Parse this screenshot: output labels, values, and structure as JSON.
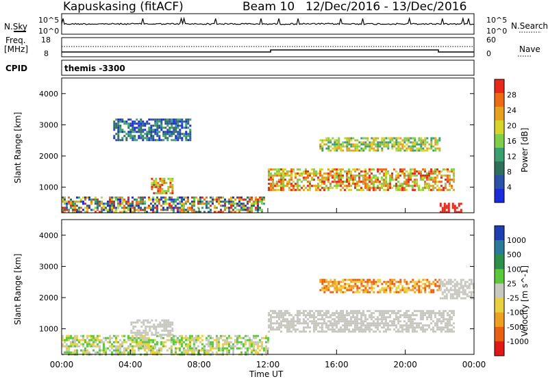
{
  "header": {
    "station": "Kapuskasing (fitACF)",
    "beam": "Beam 10",
    "dates": "12/Dec/2016 - 13/Dec/2016"
  },
  "side_labels": {
    "nsky": "N.Sky",
    "nsearch": "N.Search",
    "freq_line1": "Freq.",
    "freq_line2": "[MHz]",
    "nave": "Nave",
    "cpid": "CPID"
  },
  "noise_panel": {
    "ytick_low": "10^0",
    "ytick_high": "10^5",
    "right_tick_low": "10^0",
    "right_tick_high": "10^5"
  },
  "freq_panel": {
    "left_ticks": [
      "8",
      "18"
    ],
    "right_ticks": [
      "0",
      "60"
    ]
  },
  "cpid_panel": {
    "text": "themis -3300"
  },
  "time_axis": {
    "label": "Time UT",
    "ticks": [
      "00:00",
      "04:00",
      "08:00",
      "12:00",
      "16:00",
      "20:00",
      "00:00"
    ]
  },
  "power_panel": {
    "ylabel": "Slant Range [km]",
    "yticks": [
      "1000",
      "2000",
      "3000",
      "4000"
    ],
    "colorbar_label": "Power [dB]",
    "colorbar_ticks": [
      "4",
      "8",
      "12",
      "16",
      "20",
      "24",
      "28"
    ],
    "colors": [
      "#1a2bd9",
      "#2a52a8",
      "#2e6f5c",
      "#3aa070",
      "#7fcf4a",
      "#d6d32b",
      "#e8a020",
      "#ee6a14",
      "#e82818"
    ]
  },
  "velocity_panel": {
    "ylabel": "Slant Range [km]",
    "yticks": [
      "1000",
      "2000",
      "3000",
      "4000"
    ],
    "colorbar_label": "Velocity [m s^-1]",
    "colorbar_ticks": [
      "1000",
      "500",
      "100",
      "25",
      "-25",
      "-100",
      "-500",
      "-1000"
    ],
    "colors": [
      "#1c3fb4",
      "#2a7a9a",
      "#2e8f4a",
      "#5ac83a",
      "#c8c8c0",
      "#e8d040",
      "#f0a020",
      "#e86010",
      "#e01818"
    ]
  },
  "chart_data": {
    "type": "heatmap",
    "x_range_hours": [
      0,
      24
    ],
    "y_range_km": [
      180,
      4500
    ],
    "power_regions": [
      {
        "t0": 0.0,
        "t1": 11.8,
        "r0": 200,
        "r1": 700,
        "level": "mixed"
      },
      {
        "t0": 5.2,
        "t1": 6.5,
        "r0": 800,
        "r1": 1300,
        "level": "high"
      },
      {
        "t0": 3.0,
        "t1": 7.5,
        "r0": 2500,
        "r1": 3200,
        "level": "low"
      },
      {
        "t0": 12.0,
        "t1": 22.8,
        "r0": 900,
        "r1": 1600,
        "level": "high"
      },
      {
        "t0": 15.0,
        "t1": 22.0,
        "r0": 2200,
        "r1": 2600,
        "level": "medium"
      },
      {
        "t0": 22.0,
        "t1": 23.2,
        "r0": 200,
        "r1": 500,
        "level": "veryhigh"
      }
    ],
    "velocity_regions": [
      {
        "t0": 0.0,
        "t1": 12.0,
        "r0": 200,
        "r1": 800,
        "sign": "positive"
      },
      {
        "t0": 4.0,
        "t1": 6.5,
        "r0": 800,
        "r1": 1300,
        "sign": "zero"
      },
      {
        "t0": 12.0,
        "t1": 22.8,
        "r0": 900,
        "r1": 1600,
        "sign": "zero"
      },
      {
        "t0": 15.0,
        "t1": 22.0,
        "r0": 2200,
        "r1": 2600,
        "sign": "negative"
      },
      {
        "t0": 22.0,
        "t1": 24.0,
        "r0": 2000,
        "r1": 2600,
        "sign": "zero"
      }
    ]
  }
}
